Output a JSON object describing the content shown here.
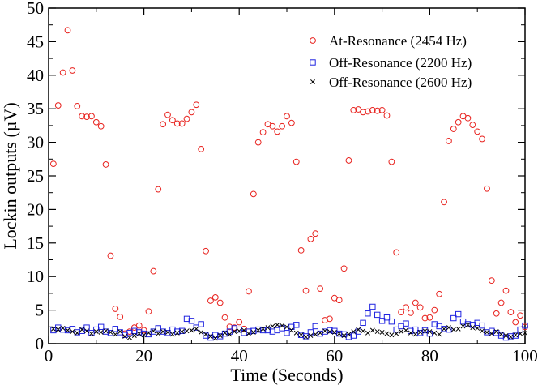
{
  "chart_data": {
    "type": "scatter",
    "title": "",
    "xlabel": "Time (Seconds)",
    "ylabel": "Lockin outputs (µV)",
    "xlim": [
      0,
      100
    ],
    "ylim": [
      0,
      50
    ],
    "xticks": [
      0,
      20,
      40,
      60,
      80,
      100
    ],
    "yticks": [
      0,
      5,
      10,
      15,
      20,
      25,
      30,
      35,
      40,
      45,
      50
    ],
    "grid": false,
    "legend_position": "top-right",
    "series": [
      {
        "name": "At-Resonance (2454 Hz)",
        "marker": "circle",
        "color": "#e8231f",
        "x": [
          1,
          2,
          3,
          4,
          5,
          6,
          7,
          8,
          9,
          10,
          11,
          12,
          13,
          14,
          15,
          16,
          17,
          18,
          19,
          20,
          21,
          22,
          23,
          24,
          25,
          26,
          27,
          28,
          29,
          30,
          31,
          32,
          33,
          34,
          35,
          36,
          37,
          38,
          39,
          40,
          41,
          42,
          43,
          44,
          45,
          46,
          47,
          48,
          49,
          50,
          51,
          52,
          53,
          54,
          55,
          56,
          57,
          58,
          59,
          60,
          61,
          62,
          63,
          64,
          65,
          66,
          67,
          68,
          69,
          70,
          71,
          72,
          73,
          74,
          75,
          76,
          77,
          78,
          79,
          80,
          81,
          82,
          83,
          84,
          85,
          86,
          87,
          88,
          89,
          90,
          91,
          92,
          93,
          94,
          95,
          96,
          97,
          98,
          99,
          100
        ],
        "y": [
          26.8,
          35.5,
          40.4,
          46.7,
          40.7,
          35.4,
          33.9,
          33.8,
          33.9,
          33.0,
          32.4,
          26.7,
          13.1,
          5.2,
          4.0,
          1.5,
          1.8,
          2.4,
          2.7,
          2.0,
          4.8,
          10.8,
          23.0,
          32.7,
          34.1,
          33.3,
          32.8,
          32.8,
          33.5,
          34.5,
          35.6,
          29.0,
          13.8,
          6.4,
          6.9,
          6.1,
          3.9,
          2.5,
          2.4,
          3.2,
          2.2,
          7.8,
          22.3,
          30.0,
          31.5,
          32.7,
          32.4,
          31.6,
          32.4,
          33.9,
          32.9,
          27.1,
          13.9,
          7.9,
          15.6,
          16.4,
          8.2,
          3.5,
          3.7,
          6.8,
          6.5,
          11.2,
          27.3,
          34.8,
          34.9,
          34.5,
          34.6,
          34.8,
          34.7,
          34.8,
          34.0,
          27.1,
          13.6,
          4.7,
          5.4,
          4.6,
          6.1,
          5.4,
          3.8,
          3.9,
          5.0,
          7.4,
          21.1,
          30.2,
          32.0,
          33.0,
          33.9,
          33.6,
          32.6,
          31.6,
          30.5,
          23.1,
          9.4,
          4.5,
          6.1,
          7.9,
          4.7,
          3.2,
          4.2,
          2.5
        ]
      },
      {
        "name": "Off-Resonance (2200 Hz)",
        "marker": "square",
        "color": "#1f23e0",
        "x": [
          1,
          2,
          3,
          4,
          5,
          6,
          7,
          8,
          9,
          10,
          11,
          12,
          13,
          14,
          15,
          16,
          17,
          18,
          19,
          20,
          21,
          22,
          23,
          24,
          25,
          26,
          27,
          28,
          29,
          30,
          31,
          32,
          33,
          34,
          35,
          36,
          37,
          38,
          39,
          40,
          41,
          42,
          43,
          44,
          45,
          46,
          47,
          48,
          49,
          50,
          51,
          52,
          53,
          54,
          55,
          56,
          57,
          58,
          59,
          60,
          61,
          62,
          63,
          64,
          65,
          66,
          67,
          68,
          69,
          70,
          71,
          72,
          73,
          74,
          75,
          76,
          77,
          78,
          79,
          80,
          81,
          82,
          83,
          84,
          85,
          86,
          87,
          88,
          89,
          90,
          91,
          92,
          93,
          94,
          95,
          96,
          97,
          98,
          99,
          100
        ],
        "y": [
          2.0,
          2.4,
          2.1,
          2.0,
          2.2,
          1.7,
          1.9,
          2.4,
          1.6,
          2.1,
          2.5,
          1.8,
          1.6,
          2.2,
          1.7,
          1.3,
          1.6,
          1.9,
          1.7,
          1.5,
          1.4,
          1.8,
          2.3,
          1.8,
          1.6,
          2.1,
          1.8,
          1.9,
          3.7,
          3.4,
          2.4,
          2.9,
          1.2,
          0.9,
          1.3,
          1.1,
          1.5,
          1.8,
          2.3,
          2.1,
          1.6,
          1.8,
          1.9,
          2.1,
          2.0,
          2.0,
          1.8,
          2.0,
          2.3,
          1.6,
          2.5,
          2.8,
          1.3,
          1.1,
          1.7,
          2.6,
          1.5,
          1.8,
          2.0,
          1.9,
          1.5,
          1.4,
          1.0,
          1.2,
          1.8,
          3.1,
          4.5,
          5.5,
          4.3,
          3.4,
          3.9,
          3.3,
          2.1,
          2.6,
          3.0,
          1.9,
          2.1,
          1.6,
          2.0,
          1.5,
          2.9,
          2.6,
          2.2,
          2.1,
          3.8,
          4.4,
          3.3,
          2.9,
          2.8,
          3.1,
          2.7,
          1.7,
          1.9,
          1.6,
          1.2,
          0.9,
          1.1,
          1.2,
          2.1,
          2.7
        ]
      },
      {
        "name": "Off-Resonance (2600 Hz)",
        "marker": "x",
        "color": "#000000",
        "x": [
          1,
          2,
          3,
          4,
          5,
          6,
          7,
          8,
          9,
          10,
          11,
          12,
          13,
          14,
          15,
          16,
          17,
          18,
          19,
          20,
          21,
          22,
          23,
          24,
          25,
          26,
          27,
          28,
          29,
          30,
          31,
          32,
          33,
          34,
          35,
          36,
          37,
          38,
          39,
          40,
          41,
          42,
          43,
          44,
          45,
          46,
          47,
          48,
          49,
          50,
          51,
          52,
          53,
          54,
          55,
          56,
          57,
          58,
          59,
          60,
          61,
          62,
          63,
          64,
          65,
          66,
          67,
          68,
          69,
          70,
          71,
          72,
          73,
          74,
          75,
          76,
          77,
          78,
          79,
          80,
          81,
          82,
          83,
          84,
          85,
          86,
          87,
          88,
          89,
          90,
          91,
          92,
          93,
          94,
          95,
          96,
          97,
          98,
          99,
          100
        ],
        "y": [
          2.2,
          2.1,
          2.3,
          2.0,
          1.8,
          1.6,
          2.1,
          1.9,
          1.5,
          1.8,
          1.7,
          1.9,
          1.7,
          1.4,
          1.8,
          1.1,
          0.9,
          1.2,
          1.5,
          1.3,
          1.6,
          1.9,
          1.5,
          1.8,
          1.7,
          1.4,
          1.6,
          1.8,
          1.9,
          2.0,
          2.2,
          1.7,
          1.4,
          1.1,
          0.8,
          1.2,
          1.6,
          1.4,
          1.8,
          1.9,
          2.0,
          1.5,
          1.7,
          2.0,
          2.2,
          2.4,
          2.6,
          2.8,
          2.7,
          2.5,
          2.0,
          1.6,
          1.3,
          1.0,
          1.2,
          1.4,
          1.6,
          1.9,
          1.8,
          1.7,
          1.5,
          1.2,
          1.4,
          1.8,
          2.1,
          1.9,
          1.6,
          2.0,
          1.8,
          1.7,
          1.5,
          1.3,
          1.5,
          1.8,
          2.0,
          1.6,
          1.4,
          1.7,
          1.9,
          1.8,
          1.6,
          1.4,
          2.2,
          2.4,
          2.1,
          2.2,
          2.6,
          2.8,
          2.4,
          2.3,
          1.9,
          1.7,
          1.5,
          1.8,
          1.4,
          1.2,
          1.0,
          1.3,
          1.5,
          1.6
        ]
      }
    ]
  }
}
